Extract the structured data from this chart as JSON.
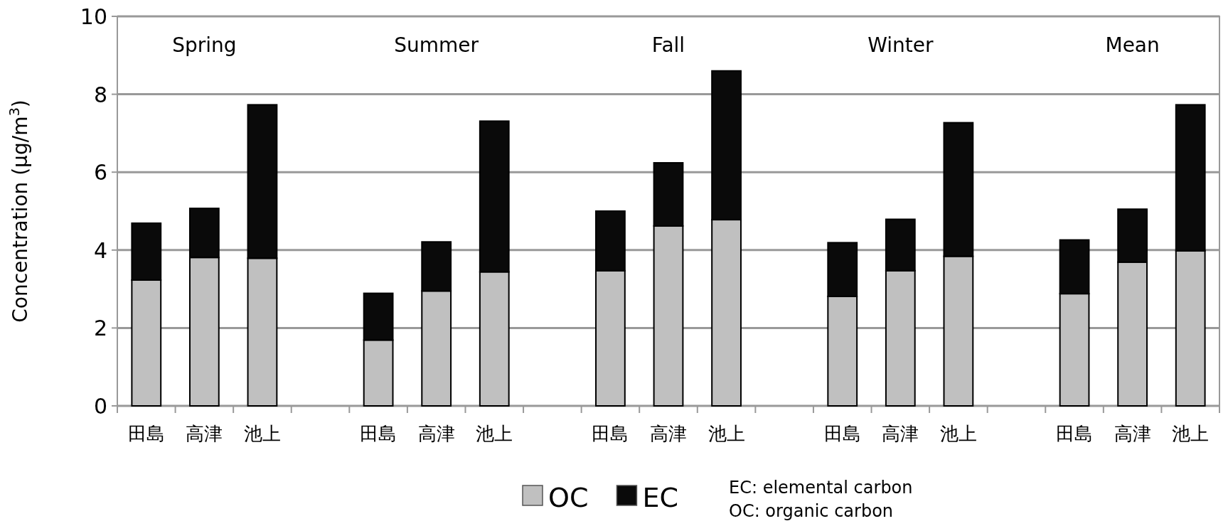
{
  "chart_data": {
    "type": "bar",
    "stacked": true,
    "ylabel": "Concentration (μg/m$^{3}$)",
    "categories": [
      "田島",
      "高津",
      "池上",
      null,
      "田島",
      "高津",
      "池上",
      null,
      "田島",
      "高津",
      "池上",
      null,
      "田島",
      "高津",
      "池上",
      null,
      "田島",
      "高津",
      "池上"
    ],
    "series": [
      {
        "name": "OC",
        "color": "#c0c0c0",
        "values": [
          3.23,
          3.81,
          3.79,
          null,
          1.69,
          2.95,
          3.44,
          null,
          3.47,
          4.62,
          4.78,
          null,
          2.81,
          3.47,
          3.84,
          null,
          2.88,
          3.69,
          3.98
        ]
      },
      {
        "name": "EC",
        "color": "#0a0a0a",
        "values": [
          1.46,
          1.26,
          3.94,
          null,
          1.2,
          1.26,
          3.87,
          null,
          1.53,
          1.62,
          3.82,
          null,
          1.38,
          1.32,
          3.43,
          null,
          1.38,
          1.36,
          3.75
        ]
      }
    ],
    "ylim": [
      0,
      10
    ],
    "yticks": [
      0,
      2,
      4,
      6,
      8,
      10
    ],
    "grid": "y",
    "legend": "bottom",
    "annotations": [
      "Spring",
      "Summer",
      "Fall",
      "Winter",
      "Mean",
      "EC: elemental carbon",
      "OC: organic carbon"
    ]
  }
}
